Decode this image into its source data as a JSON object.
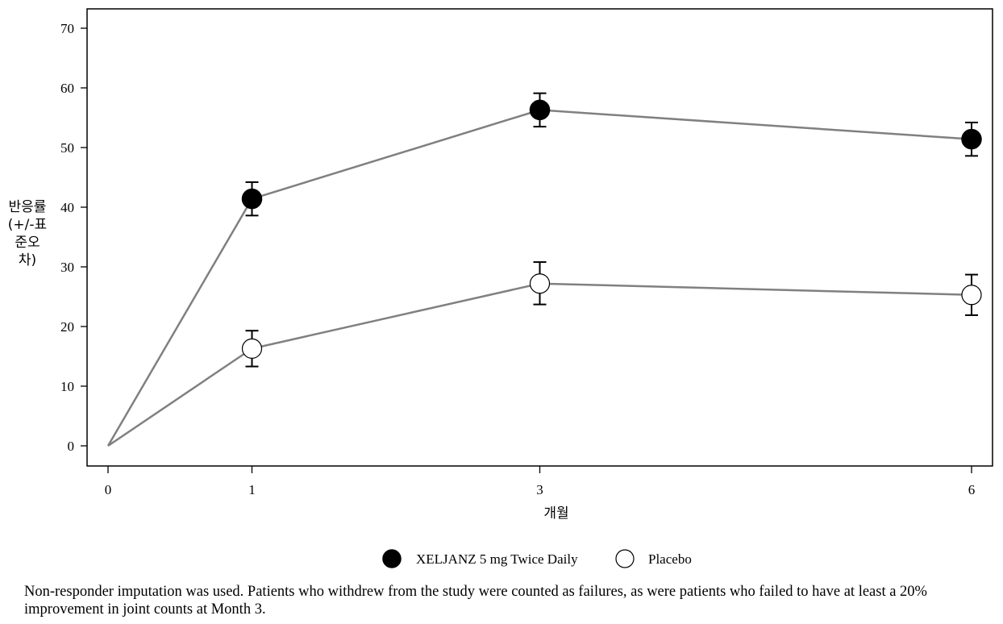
{
  "chart_data": {
    "type": "line",
    "x": [
      0,
      1,
      3,
      6
    ],
    "x_ticks": [
      "0",
      "1",
      "3",
      "6"
    ],
    "xlabel": "개월",
    "ylabel": "반응률(+/-표준오차)",
    "ylim": [
      0,
      70
    ],
    "y_ticks": [
      0,
      10,
      20,
      30,
      40,
      50,
      60,
      70
    ],
    "grid": false,
    "legend_position": "bottom",
    "series": [
      {
        "name": "XELJANZ 5 mg Twice Daily",
        "marker": "filled-circle",
        "values": [
          0,
          41.4,
          56.3,
          51.4
        ],
        "error_low": [
          null,
          38.6,
          53.5,
          48.6
        ],
        "error_high": [
          null,
          44.2,
          59.1,
          54.2
        ]
      },
      {
        "name": "Placebo",
        "marker": "open-circle",
        "values": [
          0,
          16.3,
          27.2,
          25.3
        ],
        "error_low": [
          null,
          13.3,
          23.7,
          21.9
        ],
        "error_high": [
          null,
          19.3,
          30.8,
          28.7
        ]
      }
    ],
    "line_color": "#808080"
  },
  "footnote": "Non-responder imputation was used. Patients who withdrew from the study were counted as failures, as were patients who failed to have at least a 20% improvement in joint counts at Month 3."
}
